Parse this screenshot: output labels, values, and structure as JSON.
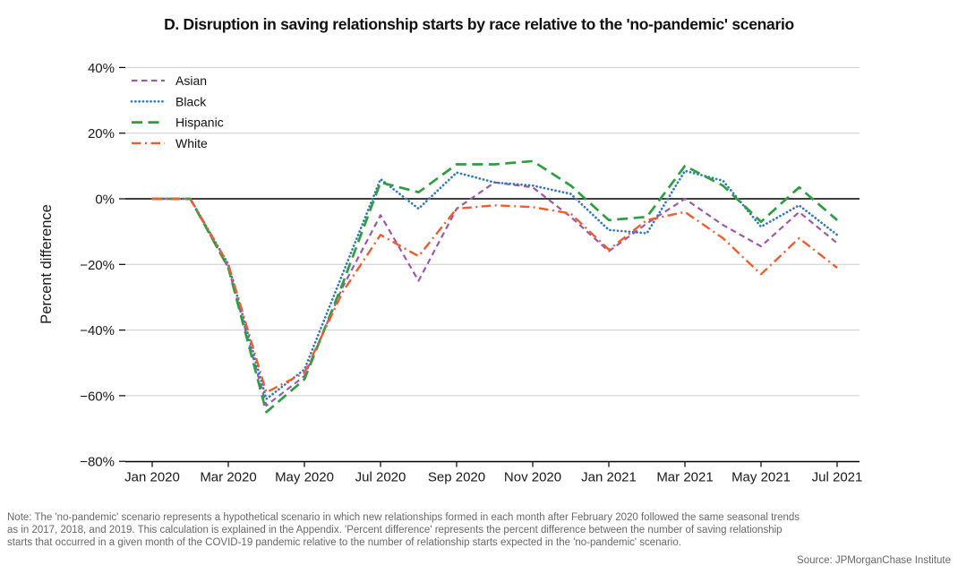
{
  "title": "D. Disruption in saving relationship starts by race relative to the 'no-pandemic' scenario",
  "note": {
    "lines": [
      "Note: The 'no-pandemic' scenario represents a hypothetical scenario in which new relationships formed in each month after February 2020 followed the same seasonal trends",
      "as in 2017, 2018, and 2019. This calculation is explained in the Appendix. 'Percent difference' represents the percent difference between the number of saving relationship",
      "starts that occurred in a given month of the COVID-19 pandemic relative to the number of relationship starts expected in the 'no-pandemic' scenario."
    ]
  },
  "source": "Source: JPMorganChase Institute",
  "chart_data": {
    "type": "line",
    "title": "D. Disruption in saving relationship starts by race relative to the 'no-pandemic' scenario",
    "xlabel": "",
    "ylabel": "Percent difference",
    "ylim": [
      -80,
      40
    ],
    "grid": true,
    "legend_position": "top-left",
    "x": [
      "Jan 2020",
      "Feb 2020",
      "Mar 2020",
      "Apr 2020",
      "May 2020",
      "Jun 2020",
      "Jul 2020",
      "Aug 2020",
      "Sep 2020",
      "Oct 2020",
      "Nov 2020",
      "Dec 2020",
      "Jan 2021",
      "Feb 2021",
      "Mar 2021",
      "Apr 2021",
      "May 2021",
      "Jun 2021",
      "Jul 2021"
    ],
    "yticks": [
      {
        "label": "40%",
        "value": 40
      },
      {
        "label": "20%",
        "value": 20
      },
      {
        "label": "0%",
        "value": 0
      },
      {
        "label": "−20%",
        "value": -20
      },
      {
        "label": "−40%",
        "value": -40
      },
      {
        "label": "−60%",
        "value": -60
      },
      {
        "label": "−80%",
        "value": -80
      }
    ],
    "xticks": [
      {
        "label": "Jan 2020",
        "month": 0
      },
      {
        "label": "Mar 2020",
        "month": 2
      },
      {
        "label": "May 2020",
        "month": 4
      },
      {
        "label": "Jul 2020",
        "month": 6
      },
      {
        "label": "Sep 2020",
        "month": 8
      },
      {
        "label": "Nov 2020",
        "month": 10
      },
      {
        "label": "Jan 2021",
        "month": 12
      },
      {
        "label": "Mar 2021",
        "month": 14
      },
      {
        "label": "May 2021",
        "month": 16
      },
      {
        "label": "Jul 2021",
        "month": 18
      }
    ],
    "series": [
      {
        "name": "Asian",
        "color": "#9e58aa",
        "linestyle": "dashed",
        "values": [
          0,
          0,
          -21,
          -63,
          -54,
          -27,
          -5,
          -25,
          -3,
          5,
          3.5,
          -5.5,
          -16,
          -7.5,
          0,
          -8,
          -14.5,
          -4,
          -13.5
        ]
      },
      {
        "name": "Black",
        "color": "#3279be",
        "linestyle": "dotted",
        "values": [
          0,
          0,
          -20,
          -61,
          -52,
          -23,
          6,
          -3,
          8,
          5,
          4,
          1.5,
          -9.5,
          -10.5,
          8.5,
          5.5,
          -8.5,
          -2,
          -11
        ]
      },
      {
        "name": "Hispanic",
        "color": "#2f9e41",
        "linestyle": "longdash",
        "values": [
          0,
          0,
          -21,
          -65,
          -55,
          -26,
          5,
          2,
          10.5,
          10.5,
          11.5,
          4,
          -6.5,
          -5.5,
          10,
          4,
          -7,
          3.5,
          -6.5
        ]
      },
      {
        "name": "White",
        "color": "#f15d2d",
        "linestyle": "dashdot",
        "values": [
          0,
          0,
          -20,
          -59,
          -53,
          -28.5,
          -11,
          -17.5,
          -3,
          -2,
          -2.5,
          -4.5,
          -15.5,
          -6.5,
          -4,
          -12,
          -23,
          -12,
          -21
        ]
      }
    ]
  }
}
